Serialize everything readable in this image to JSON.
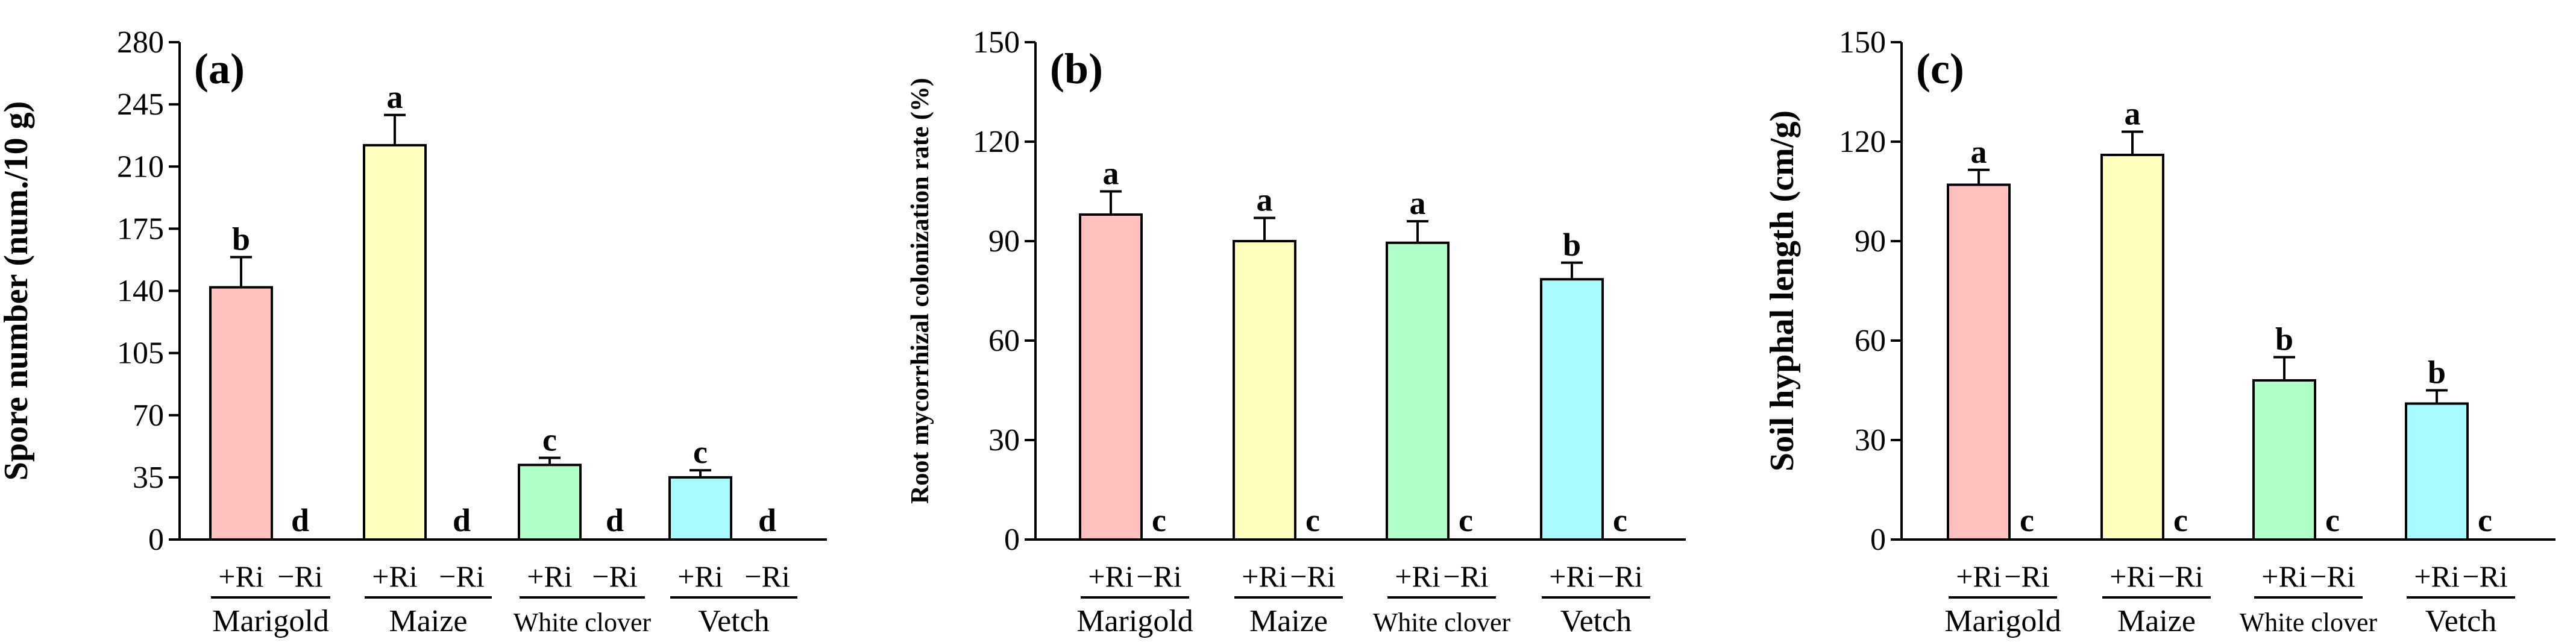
{
  "chart_data": [
    {
      "type": "bar",
      "panel": "(a)",
      "ylabel": "Spore number (num./10 g)",
      "xlabel": "",
      "ylim": [
        0,
        280
      ],
      "yticks": [
        "0",
        "35",
        "70",
        "105",
        "140",
        "175",
        "210",
        "245",
        "280"
      ],
      "categories": [
        "+Ri",
        "−Ri",
        "+Ri",
        "−Ri",
        "+Ri",
        "−Ri",
        "+Ri",
        "−Ri"
      ],
      "groups": [
        "Marigold",
        "Maize",
        "White clover",
        "Vetch"
      ],
      "values": [
        142,
        0,
        222,
        0,
        42,
        0,
        35,
        0
      ],
      "errors": [
        17,
        0,
        17,
        0,
        4,
        0,
        4,
        0
      ],
      "letters": [
        "b",
        "d",
        "a",
        "d",
        "c",
        "d",
        "c",
        "d"
      ]
    },
    {
      "type": "bar",
      "panel": "(b)",
      "ylabel": "Root mycorrhizal colonization rate (%)",
      "xlabel": "",
      "ylim": [
        0,
        150
      ],
      "yticks": [
        "0",
        "30",
        "60",
        "90",
        "120",
        "150"
      ],
      "categories": [
        "+Ri",
        "−Ri",
        "+Ri",
        "−Ri",
        "+Ri",
        "−Ri",
        "+Ri",
        "−Ri"
      ],
      "groups": [
        "Marigold",
        "Maize",
        "White clover",
        "Vetch"
      ],
      "values": [
        98,
        0,
        90,
        0,
        89.5,
        0,
        78.5,
        0
      ],
      "errors": [
        7,
        0,
        7,
        0,
        6.5,
        0,
        5,
        0
      ],
      "letters": [
        "a",
        "c",
        "a",
        "c",
        "a",
        "c",
        "b",
        "c"
      ]
    },
    {
      "type": "bar",
      "panel": "(c)",
      "ylabel": "Soil hyphal length (cm/g)",
      "xlabel": "",
      "ylim": [
        0,
        150
      ],
      "yticks": [
        "0",
        "30",
        "60",
        "90",
        "120",
        "150"
      ],
      "categories": [
        "+Ri",
        "−Ri",
        "+Ri",
        "−Ri",
        "+Ri",
        "−Ri",
        "+Ri",
        "−Ri"
      ],
      "groups": [
        "Marigold",
        "Maize",
        "White clover",
        "Vetch"
      ],
      "values": [
        107,
        0,
        116,
        0,
        48,
        0,
        41,
        0
      ],
      "errors": [
        4.5,
        0,
        7,
        0,
        7,
        0,
        4,
        0
      ],
      "letters": [
        "a",
        "c",
        "a",
        "c",
        "b",
        "c",
        "b",
        "c"
      ]
    }
  ],
  "colors": {
    "marigold": "#ffc0c0",
    "maize": "#ffffc0",
    "white_clover": "#b0ffc8",
    "vetch": "#a8fcff",
    "axis": "#000000"
  }
}
